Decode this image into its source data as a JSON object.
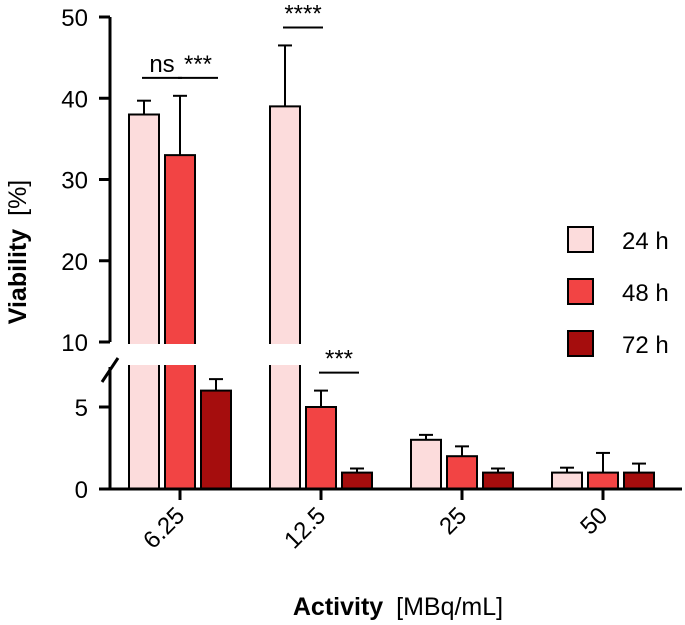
{
  "chart_data": {
    "type": "bar",
    "title": "",
    "xlabel_bold": "Activity",
    "xlabel_unit": "[MBq/mL]",
    "ylabel_bold": "Viability",
    "ylabel_unit": "[%]",
    "categories": [
      "6.25",
      "12.5",
      "25",
      "50"
    ],
    "series": [
      {
        "name": "24 h",
        "color": "#fcdcdc",
        "values": [
          38,
          39,
          3,
          1
        ],
        "errors": [
          1.7,
          7.5,
          0.3,
          0.3
        ]
      },
      {
        "name": "48 h",
        "color": "#f24444",
        "values": [
          33,
          5,
          2,
          1
        ],
        "errors": [
          7.3,
          1.0,
          0.6,
          1.2
        ]
      },
      {
        "name": "72 h",
        "color": "#a50d0d",
        "values": [
          6,
          1,
          1,
          1
        ],
        "errors": [
          0.7,
          0.25,
          0.25,
          0.55
        ]
      }
    ],
    "y_axis": {
      "broken": true,
      "lower_range": [
        0,
        7.5
      ],
      "upper_range": [
        10,
        50
      ],
      "lower_ticks": [
        0,
        5
      ],
      "upper_ticks": [
        10,
        20,
        30,
        40,
        50
      ]
    },
    "legend_position": "right",
    "significance": [
      {
        "label": "ns",
        "category": 0,
        "from_series": 0,
        "to_series": 1
      },
      {
        "label": "***",
        "category": 0,
        "from_series": 1,
        "to_series": 2
      },
      {
        "label": "****",
        "category": 1,
        "from_series": 0,
        "to_series": 1
      },
      {
        "label": "***",
        "category": 1,
        "from_series": 1,
        "to_series": 2
      }
    ]
  }
}
